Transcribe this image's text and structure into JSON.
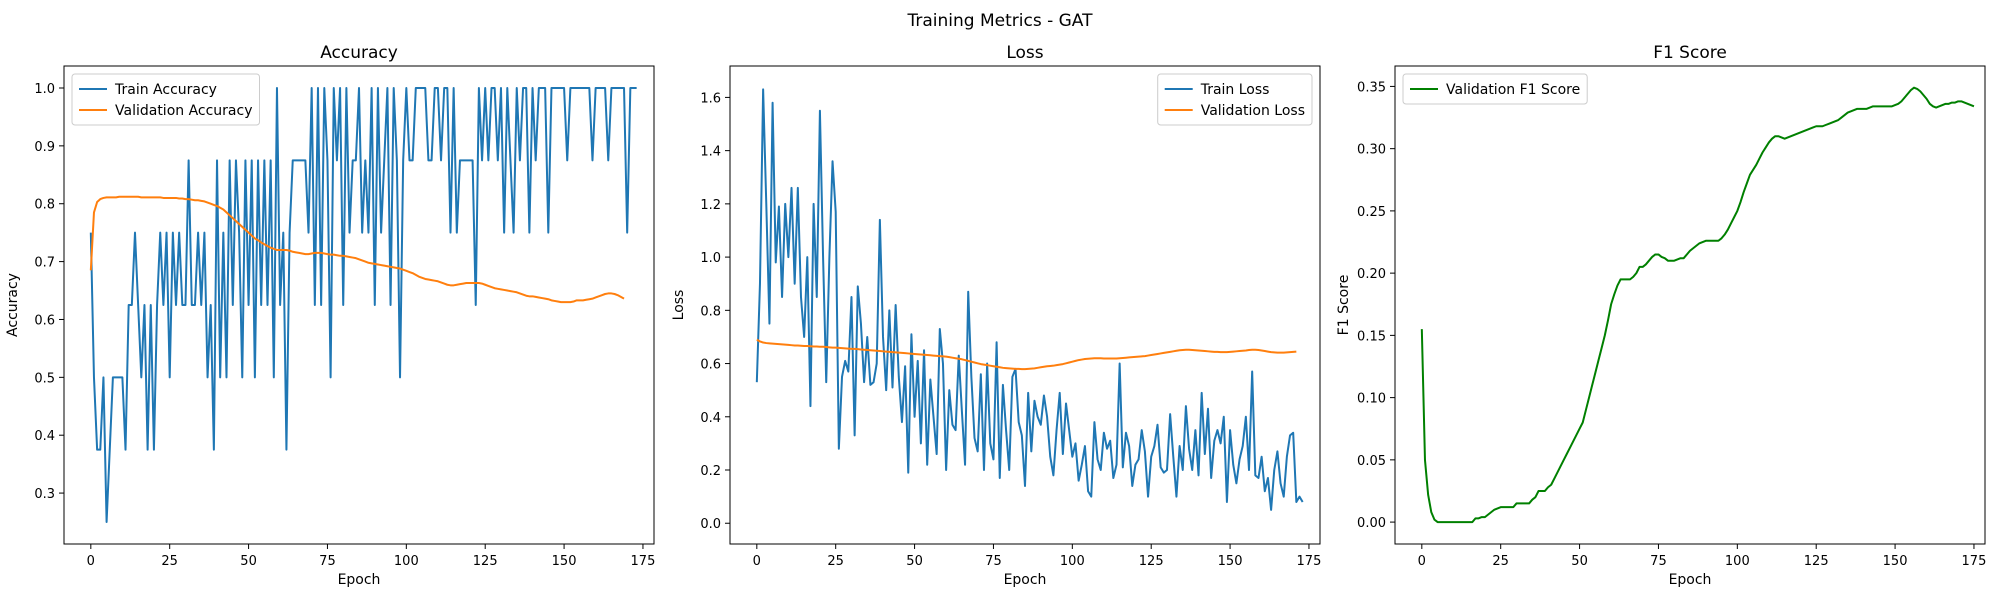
{
  "figure": {
    "suptitle": "Training Metrics - GAT"
  },
  "chart_data": [
    {
      "type": "line",
      "title": "Accuracy",
      "xlabel": "Epoch",
      "ylabel": "Accuracy",
      "xlim": [
        -8.5,
        178.5
      ],
      "ylim": [
        0.212,
        1.038
      ],
      "xticks": [
        0,
        25,
        50,
        75,
        100,
        125,
        150,
        175
      ],
      "yticks": [
        0.3,
        0.4,
        0.5,
        0.6,
        0.7,
        0.8,
        0.9,
        1.0
      ],
      "ytick_labels": [
        "0.3",
        "0.4",
        "0.5",
        "0.6",
        "0.7",
        "0.8",
        "0.9",
        "1.0"
      ],
      "legend": "upper-left",
      "series": [
        {
          "name": "Train Accuracy",
          "color": "#1f77b4",
          "x_start": 0,
          "x_step": 1,
          "values": [
            0.75,
            0.5,
            0.375,
            0.375,
            0.5,
            0.25,
            0.375,
            0.5,
            0.5,
            0.5,
            0.5,
            0.375,
            0.625,
            0.625,
            0.75,
            0.625,
            0.5,
            0.625,
            0.375,
            0.625,
            0.375,
            0.625,
            0.75,
            0.625,
            0.75,
            0.5,
            0.75,
            0.625,
            0.75,
            0.625,
            0.625,
            0.875,
            0.625,
            0.625,
            0.75,
            0.625,
            0.75,
            0.5,
            0.625,
            0.375,
            0.875,
            0.5,
            0.75,
            0.5,
            0.875,
            0.625,
            0.875,
            0.75,
            0.5,
            0.875,
            0.625,
            0.875,
            0.5,
            0.875,
            0.625,
            0.875,
            0.625,
            0.875,
            0.5,
            1.0,
            0.625,
            0.75,
            0.375,
            0.75,
            0.875,
            0.875,
            0.875,
            0.875,
            0.875,
            0.75,
            1.0,
            0.625,
            1.0,
            0.625,
            1.0,
            0.875,
            0.5,
            1.0,
            0.875,
            1.0,
            0.625,
            1.0,
            0.75,
            0.875,
            0.875,
            1.0,
            0.75,
            0.875,
            0.75,
            1.0,
            0.625,
            1.0,
            0.75,
            0.875,
            1.0,
            0.625,
            1.0,
            0.875,
            0.5,
            0.875,
            1.0,
            0.875,
            0.875,
            1.0,
            1.0,
            1.0,
            1.0,
            0.875,
            0.875,
            1.0,
            1.0,
            0.875,
            1.0,
            1.0,
            0.75,
            1.0,
            0.75,
            0.875,
            0.875,
            0.875,
            0.875,
            0.875,
            0.625,
            1.0,
            0.875,
            1.0,
            0.875,
            1.0,
            1.0,
            0.875,
            1.0,
            0.75,
            1.0,
            0.875,
            0.75,
            1.0,
            0.875,
            1.0,
            1.0,
            0.75,
            1.0,
            0.875,
            1.0,
            1.0,
            1.0,
            0.75,
            1.0,
            1.0,
            1.0,
            1.0,
            1.0,
            0.875,
            1.0,
            1.0,
            1.0,
            1.0,
            1.0,
            1.0,
            1.0,
            0.875,
            1.0,
            1.0,
            1.0,
            1.0,
            0.875,
            1.0,
            1.0,
            1.0,
            1.0,
            1.0,
            0.75,
            1.0,
            1.0,
            1.0
          ]
        },
        {
          "name": "Validation Accuracy",
          "color": "#ff7f0e",
          "x_start": 0,
          "x_step": 1,
          "values": [
            0.685,
            0.785,
            0.803,
            0.808,
            0.81,
            0.811,
            0.811,
            0.811,
            0.811,
            0.812,
            0.812,
            0.812,
            0.812,
            0.812,
            0.812,
            0.812,
            0.811,
            0.811,
            0.811,
            0.811,
            0.811,
            0.811,
            0.811,
            0.81,
            0.81,
            0.81,
            0.81,
            0.81,
            0.809,
            0.809,
            0.808,
            0.808,
            0.807,
            0.806,
            0.806,
            0.805,
            0.804,
            0.802,
            0.8,
            0.798,
            0.796,
            0.793,
            0.79,
            0.785,
            0.78,
            0.775,
            0.77,
            0.765,
            0.76,
            0.755,
            0.75,
            0.745,
            0.74,
            0.737,
            0.733,
            0.73,
            0.727,
            0.724,
            0.722,
            0.72,
            0.72,
            0.72,
            0.72,
            0.719,
            0.717,
            0.716,
            0.715,
            0.714,
            0.713,
            0.713,
            0.714,
            0.715,
            0.715,
            0.715,
            0.714,
            0.713,
            0.712,
            0.712,
            0.711,
            0.71,
            0.71,
            0.709,
            0.708,
            0.707,
            0.706,
            0.704,
            0.702,
            0.7,
            0.698,
            0.697,
            0.696,
            0.695,
            0.694,
            0.693,
            0.692,
            0.691,
            0.69,
            0.689,
            0.688,
            0.686,
            0.684,
            0.682,
            0.68,
            0.677,
            0.674,
            0.672,
            0.67,
            0.669,
            0.668,
            0.667,
            0.666,
            0.664,
            0.662,
            0.66,
            0.659,
            0.659,
            0.66,
            0.661,
            0.662,
            0.663,
            0.663,
            0.663,
            0.663,
            0.663,
            0.662,
            0.66,
            0.658,
            0.656,
            0.654,
            0.653,
            0.652,
            0.651,
            0.65,
            0.649,
            0.648,
            0.647,
            0.645,
            0.643,
            0.641,
            0.64,
            0.64,
            0.639,
            0.638,
            0.637,
            0.636,
            0.635,
            0.633,
            0.632,
            0.631,
            0.63,
            0.63,
            0.63,
            0.63,
            0.631,
            0.633,
            0.633,
            0.633,
            0.634,
            0.635,
            0.636,
            0.638,
            0.64,
            0.642,
            0.644,
            0.645,
            0.645,
            0.644,
            0.642,
            0.639,
            0.636
          ]
        }
      ]
    },
    {
      "type": "line",
      "title": "Loss",
      "xlabel": "Epoch",
      "ylabel": "Loss",
      "xlim": [
        -8.5,
        178.5
      ],
      "ylim": [
        -0.078,
        1.718
      ],
      "xticks": [
        0,
        25,
        50,
        75,
        100,
        125,
        150,
        175
      ],
      "yticks": [
        0.0,
        0.2,
        0.4,
        0.6,
        0.8,
        1.0,
        1.2,
        1.4,
        1.6
      ],
      "ytick_labels": [
        "0.0",
        "0.2",
        "0.4",
        "0.6",
        "0.8",
        "1.0",
        "1.2",
        "1.4",
        "1.6"
      ],
      "legend": "upper-right",
      "series": [
        {
          "name": "Train Loss",
          "color": "#1f77b4",
          "x_start": 0,
          "x_step": 1,
          "values": [
            0.53,
            0.9,
            1.63,
            1.2,
            0.75,
            1.58,
            0.98,
            1.19,
            0.85,
            1.2,
            1.0,
            1.26,
            0.9,
            1.26,
            0.85,
            0.7,
            1.0,
            0.44,
            1.2,
            0.85,
            1.55,
            1.0,
            0.53,
            1.0,
            1.36,
            1.17,
            0.28,
            0.55,
            0.61,
            0.57,
            0.85,
            0.33,
            0.89,
            0.75,
            0.53,
            0.7,
            0.52,
            0.53,
            0.6,
            1.14,
            0.7,
            0.5,
            0.8,
            0.51,
            0.82,
            0.55,
            0.38,
            0.59,
            0.19,
            0.71,
            0.4,
            0.61,
            0.3,
            0.65,
            0.22,
            0.54,
            0.4,
            0.26,
            0.73,
            0.6,
            0.2,
            0.5,
            0.37,
            0.35,
            0.63,
            0.42,
            0.22,
            0.87,
            0.55,
            0.32,
            0.27,
            0.56,
            0.2,
            0.6,
            0.3,
            0.24,
            0.68,
            0.17,
            0.52,
            0.35,
            0.2,
            0.55,
            0.58,
            0.38,
            0.33,
            0.14,
            0.49,
            0.27,
            0.46,
            0.4,
            0.37,
            0.48,
            0.4,
            0.25,
            0.18,
            0.35,
            0.49,
            0.26,
            0.45,
            0.35,
            0.25,
            0.3,
            0.16,
            0.22,
            0.29,
            0.12,
            0.1,
            0.38,
            0.24,
            0.2,
            0.34,
            0.28,
            0.31,
            0.17,
            0.22,
            0.6,
            0.21,
            0.34,
            0.29,
            0.14,
            0.22,
            0.24,
            0.35,
            0.27,
            0.1,
            0.25,
            0.29,
            0.37,
            0.21,
            0.19,
            0.2,
            0.41,
            0.25,
            0.1,
            0.29,
            0.2,
            0.44,
            0.28,
            0.2,
            0.35,
            0.18,
            0.49,
            0.26,
            0.43,
            0.17,
            0.31,
            0.35,
            0.3,
            0.4,
            0.08,
            0.35,
            0.22,
            0.15,
            0.24,
            0.29,
            0.4,
            0.2,
            0.57,
            0.18,
            0.17,
            0.25,
            0.12,
            0.17,
            0.05,
            0.2,
            0.27,
            0.15,
            0.1,
            0.25,
            0.33,
            0.34,
            0.08,
            0.1,
            0.08
          ]
        },
        {
          "name": "Validation Loss",
          "color": "#ff7f0e",
          "x_start": 0,
          "x_step": 1,
          "values": [
            0.69,
            0.683,
            0.679,
            0.677,
            0.676,
            0.675,
            0.674,
            0.673,
            0.672,
            0.671,
            0.67,
            0.669,
            0.668,
            0.668,
            0.667,
            0.666,
            0.666,
            0.665,
            0.664,
            0.664,
            0.663,
            0.663,
            0.662,
            0.661,
            0.66,
            0.66,
            0.659,
            0.658,
            0.657,
            0.656,
            0.655,
            0.655,
            0.654,
            0.653,
            0.652,
            0.651,
            0.65,
            0.649,
            0.648,
            0.647,
            0.646,
            0.645,
            0.644,
            0.643,
            0.642,
            0.641,
            0.64,
            0.639,
            0.638,
            0.637,
            0.636,
            0.635,
            0.634,
            0.633,
            0.632,
            0.631,
            0.63,
            0.629,
            0.628,
            0.627,
            0.626,
            0.624,
            0.622,
            0.62,
            0.618,
            0.616,
            0.613,
            0.61,
            0.607,
            0.604,
            0.601,
            0.598,
            0.596,
            0.594,
            0.592,
            0.59,
            0.588,
            0.586,
            0.584,
            0.583,
            0.582,
            0.581,
            0.58,
            0.58,
            0.579,
            0.579,
            0.58,
            0.581,
            0.582,
            0.584,
            0.586,
            0.588,
            0.59,
            0.591,
            0.592,
            0.594,
            0.596,
            0.598,
            0.601,
            0.604,
            0.607,
            0.61,
            0.613,
            0.615,
            0.617,
            0.618,
            0.619,
            0.62,
            0.62,
            0.62,
            0.619,
            0.619,
            0.619,
            0.619,
            0.619,
            0.62,
            0.621,
            0.622,
            0.623,
            0.624,
            0.625,
            0.626,
            0.627,
            0.628,
            0.63,
            0.632,
            0.634,
            0.636,
            0.638,
            0.64,
            0.642,
            0.644,
            0.646,
            0.648,
            0.65,
            0.651,
            0.652,
            0.652,
            0.651,
            0.65,
            0.649,
            0.648,
            0.647,
            0.646,
            0.645,
            0.644,
            0.644,
            0.643,
            0.643,
            0.643,
            0.644,
            0.645,
            0.646,
            0.647,
            0.648,
            0.649,
            0.651,
            0.652,
            0.652,
            0.651,
            0.649,
            0.647,
            0.645,
            0.643,
            0.642,
            0.641,
            0.641,
            0.641,
            0.642,
            0.643,
            0.644,
            0.645
          ]
        }
      ]
    },
    {
      "type": "line",
      "title": "F1 Score",
      "xlabel": "Epoch",
      "ylabel": "F1 Score",
      "xlim": [
        -8.5,
        178.5
      ],
      "ylim": [
        -0.0176,
        0.3664
      ],
      "xticks": [
        0,
        25,
        50,
        75,
        100,
        125,
        150,
        175
      ],
      "yticks": [
        0.0,
        0.05,
        0.1,
        0.15,
        0.2,
        0.25,
        0.3,
        0.35
      ],
      "ytick_labels": [
        "0.00",
        "0.05",
        "0.10",
        "0.15",
        "0.20",
        "0.25",
        "0.30",
        "0.35"
      ],
      "legend": "upper-left",
      "series": [
        {
          "name": "Validation F1 Score",
          "color": "#008000",
          "x_start": 0,
          "x_step": 1,
          "values": [
            0.155,
            0.05,
            0.022,
            0.008,
            0.002,
            0.0,
            0.0,
            0.0,
            0.0,
            0.0,
            0.0,
            0.0,
            0.0,
            0.0,
            0.0,
            0.0,
            0.0,
            0.003,
            0.003,
            0.004,
            0.004,
            0.006,
            0.008,
            0.01,
            0.011,
            0.012,
            0.012,
            0.012,
            0.012,
            0.012,
            0.015,
            0.015,
            0.015,
            0.015,
            0.015,
            0.018,
            0.02,
            0.025,
            0.025,
            0.025,
            0.028,
            0.03,
            0.035,
            0.04,
            0.045,
            0.05,
            0.055,
            0.06,
            0.065,
            0.07,
            0.075,
            0.08,
            0.09,
            0.1,
            0.11,
            0.12,
            0.13,
            0.14,
            0.15,
            0.162,
            0.175,
            0.183,
            0.19,
            0.195,
            0.195,
            0.195,
            0.195,
            0.197,
            0.2,
            0.205,
            0.205,
            0.207,
            0.21,
            0.213,
            0.215,
            0.215,
            0.213,
            0.212,
            0.21,
            0.21,
            0.21,
            0.211,
            0.212,
            0.212,
            0.215,
            0.218,
            0.22,
            0.222,
            0.224,
            0.225,
            0.226,
            0.226,
            0.226,
            0.226,
            0.226,
            0.228,
            0.231,
            0.235,
            0.24,
            0.245,
            0.25,
            0.257,
            0.265,
            0.272,
            0.279,
            0.283,
            0.287,
            0.292,
            0.297,
            0.301,
            0.305,
            0.308,
            0.31,
            0.31,
            0.309,
            0.308,
            0.309,
            0.31,
            0.311,
            0.312,
            0.313,
            0.314,
            0.315,
            0.316,
            0.317,
            0.318,
            0.318,
            0.318,
            0.319,
            0.32,
            0.321,
            0.322,
            0.323,
            0.325,
            0.327,
            0.329,
            0.33,
            0.331,
            0.332,
            0.332,
            0.332,
            0.332,
            0.333,
            0.334,
            0.334,
            0.334,
            0.334,
            0.334,
            0.334,
            0.334,
            0.335,
            0.336,
            0.338,
            0.341,
            0.344,
            0.347,
            0.349,
            0.348,
            0.346,
            0.343,
            0.34,
            0.336,
            0.334,
            0.333,
            0.334,
            0.335,
            0.336,
            0.336,
            0.337,
            0.337,
            0.338,
            0.338,
            0.337,
            0.336,
            0.335,
            0.334
          ]
        }
      ]
    }
  ]
}
